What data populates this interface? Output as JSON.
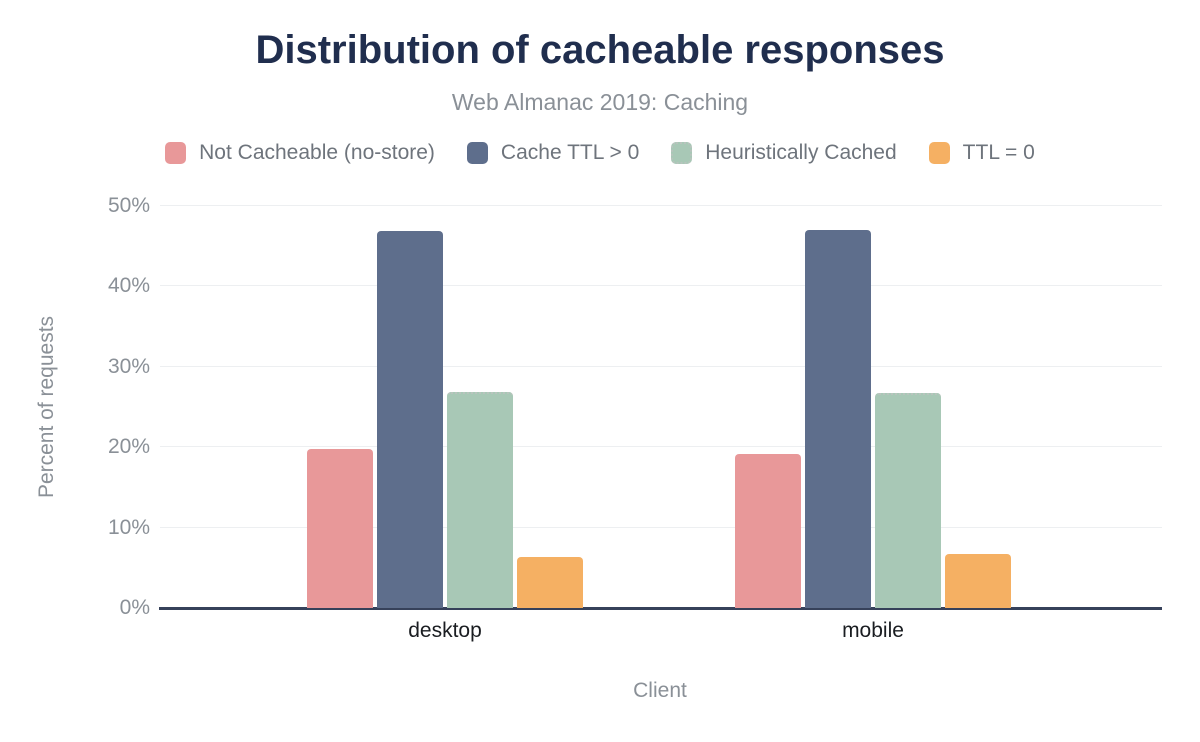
{
  "chart_data": {
    "type": "bar",
    "title": "Distribution of cacheable responses",
    "subtitle": "Web Almanac 2019: Caching",
    "categories": [
      "desktop",
      "mobile"
    ],
    "series": [
      {
        "name": "Not Cacheable (no-store)",
        "color": "#e89899",
        "values": [
          19.8,
          19.2
        ]
      },
      {
        "name": "Cache TTL > 0",
        "color": "#5e6e8c",
        "values": [
          46.9,
          47.0
        ]
      },
      {
        "name": "Heuristically Cached",
        "color": "#a8c8b6",
        "values": [
          26.9,
          26.8
        ],
        "border_style": "dotted",
        "border_color": "#b8c4bd"
      },
      {
        "name": "TTL = 0",
        "color": "#f5b063",
        "values": [
          6.3,
          6.7
        ]
      }
    ],
    "xlabel": "Client",
    "ylabel": "Percent of requests",
    "ylim": [
      0,
      50
    ],
    "ytick_step": 10,
    "ytick_suffix": "%",
    "grid": true,
    "legend_position": "top"
  },
  "colors": {
    "title": "#202e4e",
    "subtitle": "#8a9097",
    "tick_label": "#8a9097",
    "category_label": "#1a1d21",
    "legend_label": "#6e747c",
    "axis_line": "#36415a",
    "gridline": "#edeff1",
    "background": "#ffffff"
  }
}
